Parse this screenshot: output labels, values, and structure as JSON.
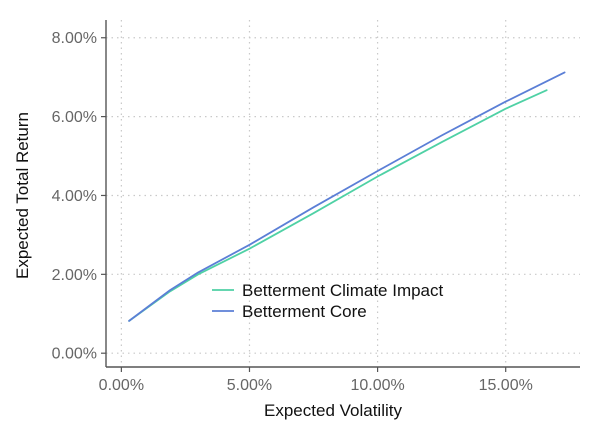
{
  "chart_data": {
    "type": "line",
    "title": "",
    "xlabel": "Expected Volatility",
    "ylabel": "Expected Total Return",
    "xlim": [
      -0.6,
      17.9
    ],
    "ylim": [
      -0.35,
      8.45
    ],
    "x_ticks": [
      0,
      5,
      10,
      15
    ],
    "x_tick_labels": [
      "0.00%",
      "5.00%",
      "10.00%",
      "15.00%"
    ],
    "y_ticks": [
      0,
      2,
      4,
      6,
      8
    ],
    "y_tick_labels": [
      "0.00%",
      "2.00%",
      "4.00%",
      "6.00%",
      "8.00%"
    ],
    "grid": true,
    "legend_position": "inside-bottom-center",
    "series": [
      {
        "name": "Betterment Climate Impact",
        "color": "#4fd1a5",
        "x": [
          0.3,
          1.9,
          3.0,
          5.0,
          7.5,
          10.0,
          12.5,
          15.0,
          16.6
        ],
        "y": [
          0.82,
          1.57,
          2.0,
          2.65,
          3.55,
          4.48,
          5.35,
          6.2,
          6.67
        ]
      },
      {
        "name": "Betterment Core",
        "color": "#5b7fd6",
        "x": [
          0.3,
          1.9,
          3.0,
          5.0,
          7.5,
          10.0,
          12.5,
          15.0,
          17.3
        ],
        "y": [
          0.82,
          1.6,
          2.05,
          2.75,
          3.7,
          4.62,
          5.52,
          6.38,
          7.12
        ]
      }
    ]
  }
}
